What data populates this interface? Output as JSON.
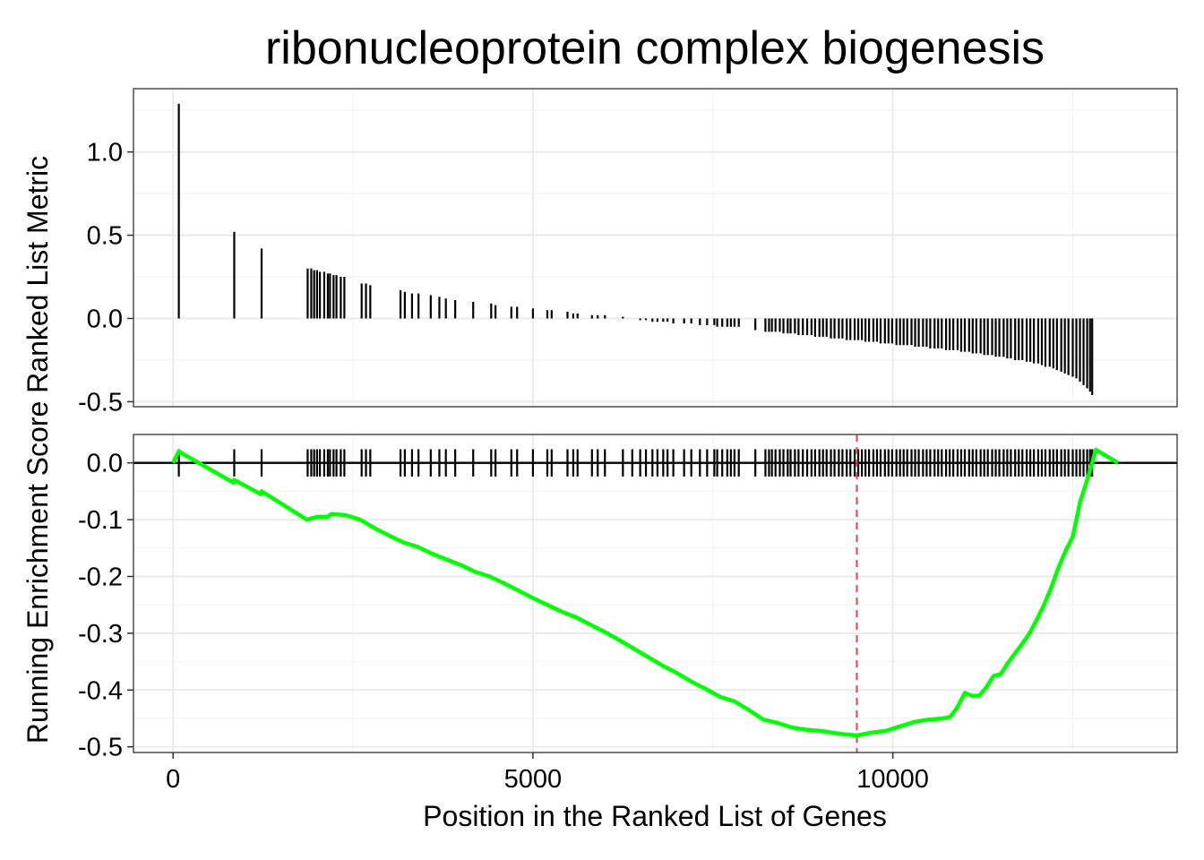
{
  "chart_data": {
    "type": "line",
    "title": "ribonucleoprotein complex biogenesis",
    "xlabel": "Position in the Ranked List of Genes",
    "ylabel": "Running Enrichment Score Ranked List Metric",
    "xlim": [
      -550,
      13950
    ],
    "x_ticks": [
      0,
      5000,
      10000
    ],
    "x_tick_labels": [
      "0",
      "5000",
      "10000"
    ],
    "grid": true,
    "ranked_metric_panel": {
      "ylim": [
        -0.53,
        1.38
      ],
      "y_ticks": [
        1.0,
        0.5,
        0.0,
        -0.5
      ],
      "y_tick_labels": [
        "1.0",
        "0.5",
        "0.0",
        "-0.5"
      ],
      "hits": [
        [
          80,
          1.29
        ],
        [
          850,
          0.52
        ],
        [
          1230,
          0.42
        ],
        [
          1870,
          0.3
        ],
        [
          1920,
          0.3
        ],
        [
          1960,
          0.29
        ],
        [
          2000,
          0.29
        ],
        [
          2040,
          0.28
        ],
        [
          2100,
          0.28
        ],
        [
          2150,
          0.27
        ],
        [
          2180,
          0.27
        ],
        [
          2230,
          0.26
        ],
        [
          2270,
          0.26
        ],
        [
          2330,
          0.25
        ],
        [
          2380,
          0.25
        ],
        [
          2620,
          0.21
        ],
        [
          2680,
          0.21
        ],
        [
          2740,
          0.2
        ],
        [
          3160,
          0.17
        ],
        [
          3220,
          0.16
        ],
        [
          3320,
          0.15
        ],
        [
          3410,
          0.15
        ],
        [
          3580,
          0.14
        ],
        [
          3700,
          0.13
        ],
        [
          3790,
          0.12
        ],
        [
          3920,
          0.11
        ],
        [
          4170,
          0.1
        ],
        [
          4420,
          0.09
        ],
        [
          4480,
          0.08
        ],
        [
          4700,
          0.07
        ],
        [
          4780,
          0.07
        ],
        [
          5000,
          0.06
        ],
        [
          5200,
          0.05
        ],
        [
          5260,
          0.05
        ],
        [
          5480,
          0.04
        ],
        [
          5560,
          0.03
        ],
        [
          5620,
          0.03
        ],
        [
          5820,
          0.02
        ],
        [
          5900,
          0.02
        ],
        [
          6000,
          0.02
        ],
        [
          6250,
          0.01
        ],
        [
          6380,
          0.0
        ],
        [
          6490,
          -0.01
        ],
        [
          6570,
          -0.01
        ],
        [
          6660,
          -0.02
        ],
        [
          6730,
          -0.02
        ],
        [
          6810,
          -0.02
        ],
        [
          6870,
          -0.02
        ],
        [
          6950,
          -0.03
        ],
        [
          7100,
          -0.03
        ],
        [
          7200,
          -0.03
        ],
        [
          7320,
          -0.04
        ],
        [
          7420,
          -0.04
        ],
        [
          7520,
          -0.04
        ],
        [
          7560,
          -0.05
        ],
        [
          7630,
          -0.05
        ],
        [
          7700,
          -0.05
        ],
        [
          7750,
          -0.05
        ],
        [
          7800,
          -0.05
        ],
        [
          7860,
          -0.05
        ],
        [
          8090,
          -0.07
        ],
        [
          8230,
          -0.08
        ],
        [
          8280,
          -0.08
        ],
        [
          8320,
          -0.08
        ],
        [
          8370,
          -0.08
        ],
        [
          8430,
          -0.08
        ],
        [
          8480,
          -0.09
        ],
        [
          8540,
          -0.09
        ],
        [
          8580,
          -0.09
        ],
        [
          8640,
          -0.09
        ],
        [
          8690,
          -0.1
        ],
        [
          8750,
          -0.1
        ],
        [
          8810,
          -0.1
        ],
        [
          8870,
          -0.1
        ],
        [
          8920,
          -0.11
        ],
        [
          8980,
          -0.11
        ],
        [
          9030,
          -0.11
        ],
        [
          9080,
          -0.11
        ],
        [
          9140,
          -0.12
        ],
        [
          9190,
          -0.12
        ],
        [
          9250,
          -0.12
        ],
        [
          9300,
          -0.12
        ],
        [
          9360,
          -0.13
        ],
        [
          9410,
          -0.13
        ],
        [
          9470,
          -0.13
        ],
        [
          9520,
          -0.13
        ],
        [
          9570,
          -0.13
        ],
        [
          9620,
          -0.14
        ],
        [
          9670,
          -0.14
        ],
        [
          9730,
          -0.14
        ],
        [
          9780,
          -0.14
        ],
        [
          9830,
          -0.15
        ],
        [
          9890,
          -0.15
        ],
        [
          9940,
          -0.15
        ],
        [
          9990,
          -0.15
        ],
        [
          10050,
          -0.16
        ],
        [
          10100,
          -0.16
        ],
        [
          10150,
          -0.16
        ],
        [
          10200,
          -0.16
        ],
        [
          10260,
          -0.16
        ],
        [
          10310,
          -0.17
        ],
        [
          10360,
          -0.17
        ],
        [
          10420,
          -0.17
        ],
        [
          10470,
          -0.17
        ],
        [
          10520,
          -0.18
        ],
        [
          10580,
          -0.18
        ],
        [
          10630,
          -0.18
        ],
        [
          10680,
          -0.18
        ],
        [
          10740,
          -0.19
        ],
        [
          10790,
          -0.19
        ],
        [
          10840,
          -0.19
        ],
        [
          10900,
          -0.19
        ],
        [
          10950,
          -0.2
        ],
        [
          11000,
          -0.2
        ],
        [
          11060,
          -0.2
        ],
        [
          11110,
          -0.21
        ],
        [
          11160,
          -0.21
        ],
        [
          11220,
          -0.21
        ],
        [
          11270,
          -0.22
        ],
        [
          11320,
          -0.22
        ],
        [
          11380,
          -0.22
        ],
        [
          11430,
          -0.23
        ],
        [
          11480,
          -0.23
        ],
        [
          11540,
          -0.23
        ],
        [
          11590,
          -0.24
        ],
        [
          11640,
          -0.24
        ],
        [
          11700,
          -0.25
        ],
        [
          11750,
          -0.25
        ],
        [
          11800,
          -0.25
        ],
        [
          11860,
          -0.26
        ],
        [
          11910,
          -0.26
        ],
        [
          11960,
          -0.27
        ],
        [
          12020,
          -0.27
        ],
        [
          12070,
          -0.28
        ],
        [
          12120,
          -0.29
        ],
        [
          12180,
          -0.29
        ],
        [
          12230,
          -0.3
        ],
        [
          12280,
          -0.31
        ],
        [
          12340,
          -0.32
        ],
        [
          12390,
          -0.33
        ],
        [
          12440,
          -0.34
        ],
        [
          12500,
          -0.35
        ],
        [
          12550,
          -0.36
        ],
        [
          12600,
          -0.38
        ],
        [
          12650,
          -0.4
        ],
        [
          12700,
          -0.42
        ],
        [
          12740,
          -0.44
        ],
        [
          12770,
          -0.46
        ]
      ]
    },
    "running_es_panel": {
      "ylim": [
        -0.51,
        0.05
      ],
      "y_ticks": [
        0.0,
        -0.1,
        -0.2,
        -0.3,
        -0.4,
        -0.5
      ],
      "y_tick_labels": [
        "0.0",
        "-0.1",
        "-0.2",
        "-0.3",
        "-0.4",
        "-0.5"
      ],
      "zero_line": 0,
      "max_deviation_position": 9500,
      "series": [
        {
          "color": "#00ff00",
          "points": [
            [
              0,
              0.0
            ],
            [
              80,
              0.02
            ],
            [
              840,
              -0.035
            ],
            [
              850,
              -0.03
            ],
            [
              1220,
              -0.055
            ],
            [
              1230,
              -0.05
            ],
            [
              1860,
              -0.1
            ],
            [
              2000,
              -0.095
            ],
            [
              2150,
              -0.095
            ],
            [
              2200,
              -0.09
            ],
            [
              2400,
              -0.092
            ],
            [
              2600,
              -0.1
            ],
            [
              2800,
              -0.115
            ],
            [
              3000,
              -0.128
            ],
            [
              3200,
              -0.14
            ],
            [
              3400,
              -0.148
            ],
            [
              3600,
              -0.16
            ],
            [
              3800,
              -0.17
            ],
            [
              4000,
              -0.18
            ],
            [
              4200,
              -0.192
            ],
            [
              4400,
              -0.2
            ],
            [
              4600,
              -0.212
            ],
            [
              4800,
              -0.225
            ],
            [
              5000,
              -0.238
            ],
            [
              5200,
              -0.25
            ],
            [
              5400,
              -0.262
            ],
            [
              5600,
              -0.272
            ],
            [
              5800,
              -0.285
            ],
            [
              6000,
              -0.298
            ],
            [
              6200,
              -0.312
            ],
            [
              6400,
              -0.327
            ],
            [
              6600,
              -0.342
            ],
            [
              6800,
              -0.357
            ],
            [
              7000,
              -0.37
            ],
            [
              7200,
              -0.385
            ],
            [
              7400,
              -0.398
            ],
            [
              7600,
              -0.412
            ],
            [
              7800,
              -0.42
            ],
            [
              8000,
              -0.435
            ],
            [
              8200,
              -0.452
            ],
            [
              8400,
              -0.458
            ],
            [
              8600,
              -0.466
            ],
            [
              8800,
              -0.47
            ],
            [
              9000,
              -0.472
            ],
            [
              9200,
              -0.476
            ],
            [
              9400,
              -0.479
            ],
            [
              9500,
              -0.48
            ],
            [
              9700,
              -0.475
            ],
            [
              9900,
              -0.472
            ],
            [
              10100,
              -0.464
            ],
            [
              10300,
              -0.456
            ],
            [
              10500,
              -0.452
            ],
            [
              10700,
              -0.45
            ],
            [
              10800,
              -0.447
            ],
            [
              10900,
              -0.43
            ],
            [
              11000,
              -0.405
            ],
            [
              11100,
              -0.41
            ],
            [
              11200,
              -0.41
            ],
            [
              11300,
              -0.395
            ],
            [
              11400,
              -0.375
            ],
            [
              11500,
              -0.372
            ],
            [
              11600,
              -0.352
            ],
            [
              11700,
              -0.335
            ],
            [
              11800,
              -0.318
            ],
            [
              11900,
              -0.3
            ],
            [
              12000,
              -0.276
            ],
            [
              12100,
              -0.25
            ],
            [
              12200,
              -0.22
            ],
            [
              12300,
              -0.185
            ],
            [
              12400,
              -0.155
            ],
            [
              12500,
              -0.13
            ],
            [
              12600,
              -0.07
            ],
            [
              12700,
              -0.03
            ],
            [
              12770,
              0.0
            ],
            [
              12820,
              0.023
            ],
            [
              13130,
              0.0
            ]
          ]
        }
      ]
    }
  }
}
